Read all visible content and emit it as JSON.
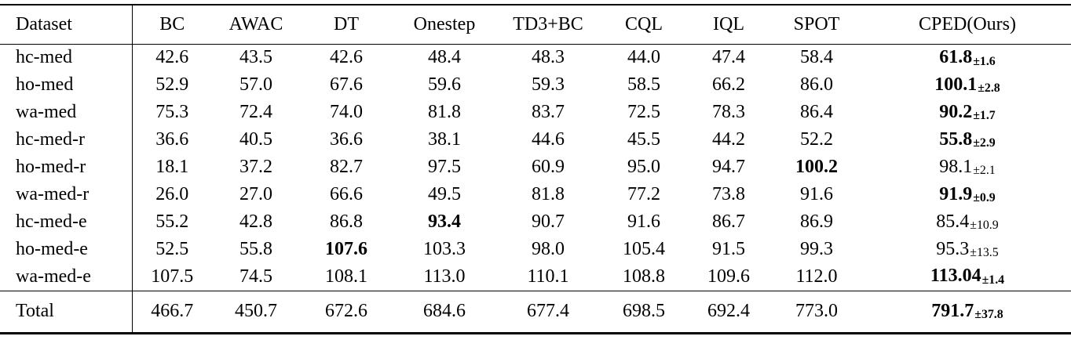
{
  "page": {
    "background": "#ffffff",
    "text_color": "#000000",
    "rule_color": "#000000"
  },
  "table": {
    "header": {
      "labels": [
        "Dataset",
        "BC",
        "AWAC",
        "DT",
        "Onestep",
        "TD3+BC",
        "CQL",
        "IQL",
        "SPOT",
        "CPED(Ours)"
      ]
    },
    "rows": [
      {
        "dataset": "hc-med",
        "cells": [
          {
            "v": "42.6"
          },
          {
            "v": "43.5"
          },
          {
            "v": "42.6"
          },
          {
            "v": "48.4"
          },
          {
            "v": "48.3"
          },
          {
            "v": "44.0"
          },
          {
            "v": "47.4"
          },
          {
            "v": "58.4"
          },
          {
            "v": "61.8",
            "sub": "±1.6",
            "bold": true
          }
        ]
      },
      {
        "dataset": "ho-med",
        "cells": [
          {
            "v": "52.9"
          },
          {
            "v": "57.0"
          },
          {
            "v": "67.6"
          },
          {
            "v": "59.6"
          },
          {
            "v": "59.3"
          },
          {
            "v": "58.5"
          },
          {
            "v": "66.2"
          },
          {
            "v": "86.0"
          },
          {
            "v": "100.1",
            "sub": "±2.8",
            "bold": true
          }
        ]
      },
      {
        "dataset": "wa-med",
        "cells": [
          {
            "v": "75.3"
          },
          {
            "v": "72.4"
          },
          {
            "v": "74.0"
          },
          {
            "v": "81.8"
          },
          {
            "v": "83.7"
          },
          {
            "v": "72.5"
          },
          {
            "v": "78.3"
          },
          {
            "v": "86.4"
          },
          {
            "v": "90.2",
            "sub": "±1.7",
            "bold": true
          }
        ]
      },
      {
        "dataset": "hc-med-r",
        "cells": [
          {
            "v": "36.6"
          },
          {
            "v": "40.5"
          },
          {
            "v": "36.6"
          },
          {
            "v": "38.1"
          },
          {
            "v": "44.6"
          },
          {
            "v": "45.5"
          },
          {
            "v": "44.2"
          },
          {
            "v": "52.2"
          },
          {
            "v": "55.8",
            "sub": "±2.9",
            "bold": true
          }
        ]
      },
      {
        "dataset": "ho-med-r",
        "cells": [
          {
            "v": "18.1"
          },
          {
            "v": "37.2"
          },
          {
            "v": "82.7"
          },
          {
            "v": "97.5"
          },
          {
            "v": "60.9"
          },
          {
            "v": "95.0"
          },
          {
            "v": "94.7"
          },
          {
            "v": "100.2",
            "bold": true
          },
          {
            "v": "98.1",
            "sub": "±2.1"
          }
        ]
      },
      {
        "dataset": "wa-med-r",
        "cells": [
          {
            "v": "26.0"
          },
          {
            "v": "27.0"
          },
          {
            "v": "66.6"
          },
          {
            "v": "49.5"
          },
          {
            "v": "81.8"
          },
          {
            "v": "77.2"
          },
          {
            "v": "73.8"
          },
          {
            "v": "91.6"
          },
          {
            "v": "91.9",
            "sub": "±0.9",
            "bold": true
          }
        ]
      },
      {
        "dataset": "hc-med-e",
        "cells": [
          {
            "v": "55.2"
          },
          {
            "v": "42.8"
          },
          {
            "v": "86.8"
          },
          {
            "v": "93.4",
            "bold": true
          },
          {
            "v": "90.7"
          },
          {
            "v": "91.6"
          },
          {
            "v": "86.7"
          },
          {
            "v": "86.9"
          },
          {
            "v": "85.4",
            "sub": "±10.9"
          }
        ]
      },
      {
        "dataset": "ho-med-e",
        "cells": [
          {
            "v": "52.5"
          },
          {
            "v": "55.8"
          },
          {
            "v": "107.6",
            "bold": true
          },
          {
            "v": "103.3"
          },
          {
            "v": "98.0"
          },
          {
            "v": "105.4"
          },
          {
            "v": "91.5"
          },
          {
            "v": "99.3"
          },
          {
            "v": "95.3",
            "sub": "±13.5"
          }
        ]
      },
      {
        "dataset": "wa-med-e",
        "cells": [
          {
            "v": "107.5"
          },
          {
            "v": "74.5"
          },
          {
            "v": "108.1"
          },
          {
            "v": "113.0"
          },
          {
            "v": "110.1"
          },
          {
            "v": "108.8"
          },
          {
            "v": "109.6"
          },
          {
            "v": "112.0"
          },
          {
            "v": "113.04",
            "sub": "±1.4",
            "bold": true
          }
        ]
      }
    ],
    "total": {
      "dataset": "Total",
      "cells": [
        {
          "v": "466.7"
        },
        {
          "v": "450.7"
        },
        {
          "v": "672.6"
        },
        {
          "v": "684.6"
        },
        {
          "v": "677.4"
        },
        {
          "v": "698.5"
        },
        {
          "v": "692.4"
        },
        {
          "v": "773.0"
        },
        {
          "v": "791.7",
          "sub": "±37.8",
          "bold": true
        }
      ]
    }
  }
}
